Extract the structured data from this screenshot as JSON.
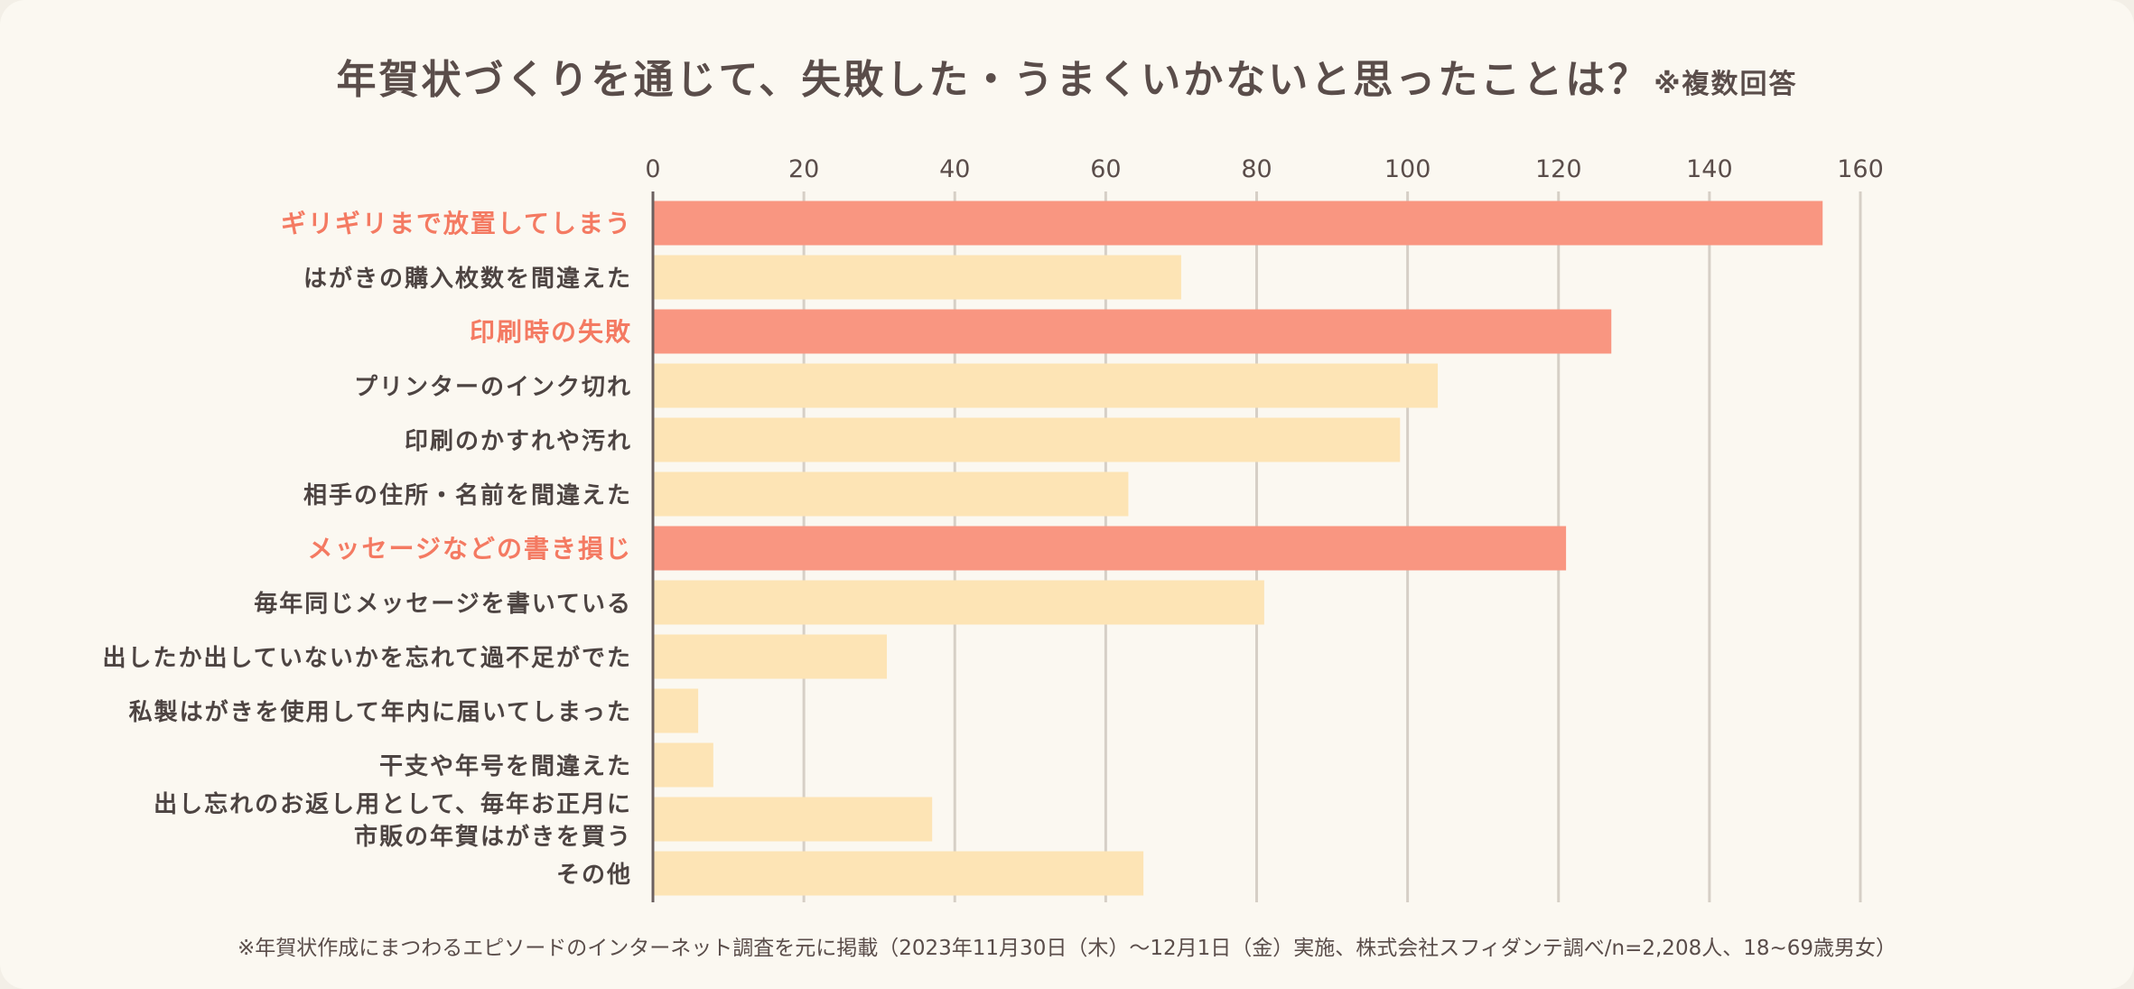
{
  "title": {
    "main": "年賀状づくりを通じて、失敗した・うまくいかないと思ったことは？",
    "note": "※複数回答"
  },
  "footnote": "※年賀状作成にまつわるエピソードのインターネット調査を元に掲載（2023年11月30日（木）〜12月1日（金）実施、株式会社スフィダンテ調べ/n=2,208人、18~69歳男女）",
  "colors": {
    "highlight": "#f99681",
    "normal": "#fde4b5",
    "highlight_text": "#f47a62",
    "text": "#4d4442",
    "grid": "#d6cfc6",
    "axis": "#6b6060"
  },
  "chart_data": {
    "type": "bar",
    "orientation": "horizontal",
    "title": "年賀状づくりを通じて、失敗した・うまくいかないと思ったことは？※複数回答",
    "xlim": [
      0,
      160
    ],
    "ticks": [
      "0",
      "20",
      "40",
      "60",
      "80",
      "100",
      "120",
      "140",
      "160"
    ],
    "tick_values": [
      0,
      20,
      40,
      60,
      80,
      100,
      120,
      140,
      160
    ],
    "grid": true,
    "categories": [
      [
        "ギリギリまで放置してしまう"
      ],
      [
        "はがきの購入枚数を間違えた"
      ],
      [
        "印刷時の失敗"
      ],
      [
        "プリンターのインク切れ"
      ],
      [
        "印刷のかすれや汚れ"
      ],
      [
        "相手の住所・名前を間違えた"
      ],
      [
        "メッセージなどの書き損じ"
      ],
      [
        "毎年同じメッセージを書いている"
      ],
      [
        "出したか出していないかを忘れて過不足がでた"
      ],
      [
        "私製はがきを使用して年内に届いてしまった"
      ],
      [
        "干支や年号を間違えた"
      ],
      [
        "出し忘れのお返し用として、毎年お正月に",
        "市販の年賀はがきを買う"
      ],
      [
        "その他"
      ]
    ],
    "values": [
      155,
      70,
      127,
      104,
      99,
      63,
      121,
      81,
      31,
      6,
      8,
      37,
      65
    ],
    "highlighted": [
      true,
      false,
      true,
      false,
      false,
      false,
      true,
      false,
      false,
      false,
      false,
      false,
      false
    ]
  }
}
